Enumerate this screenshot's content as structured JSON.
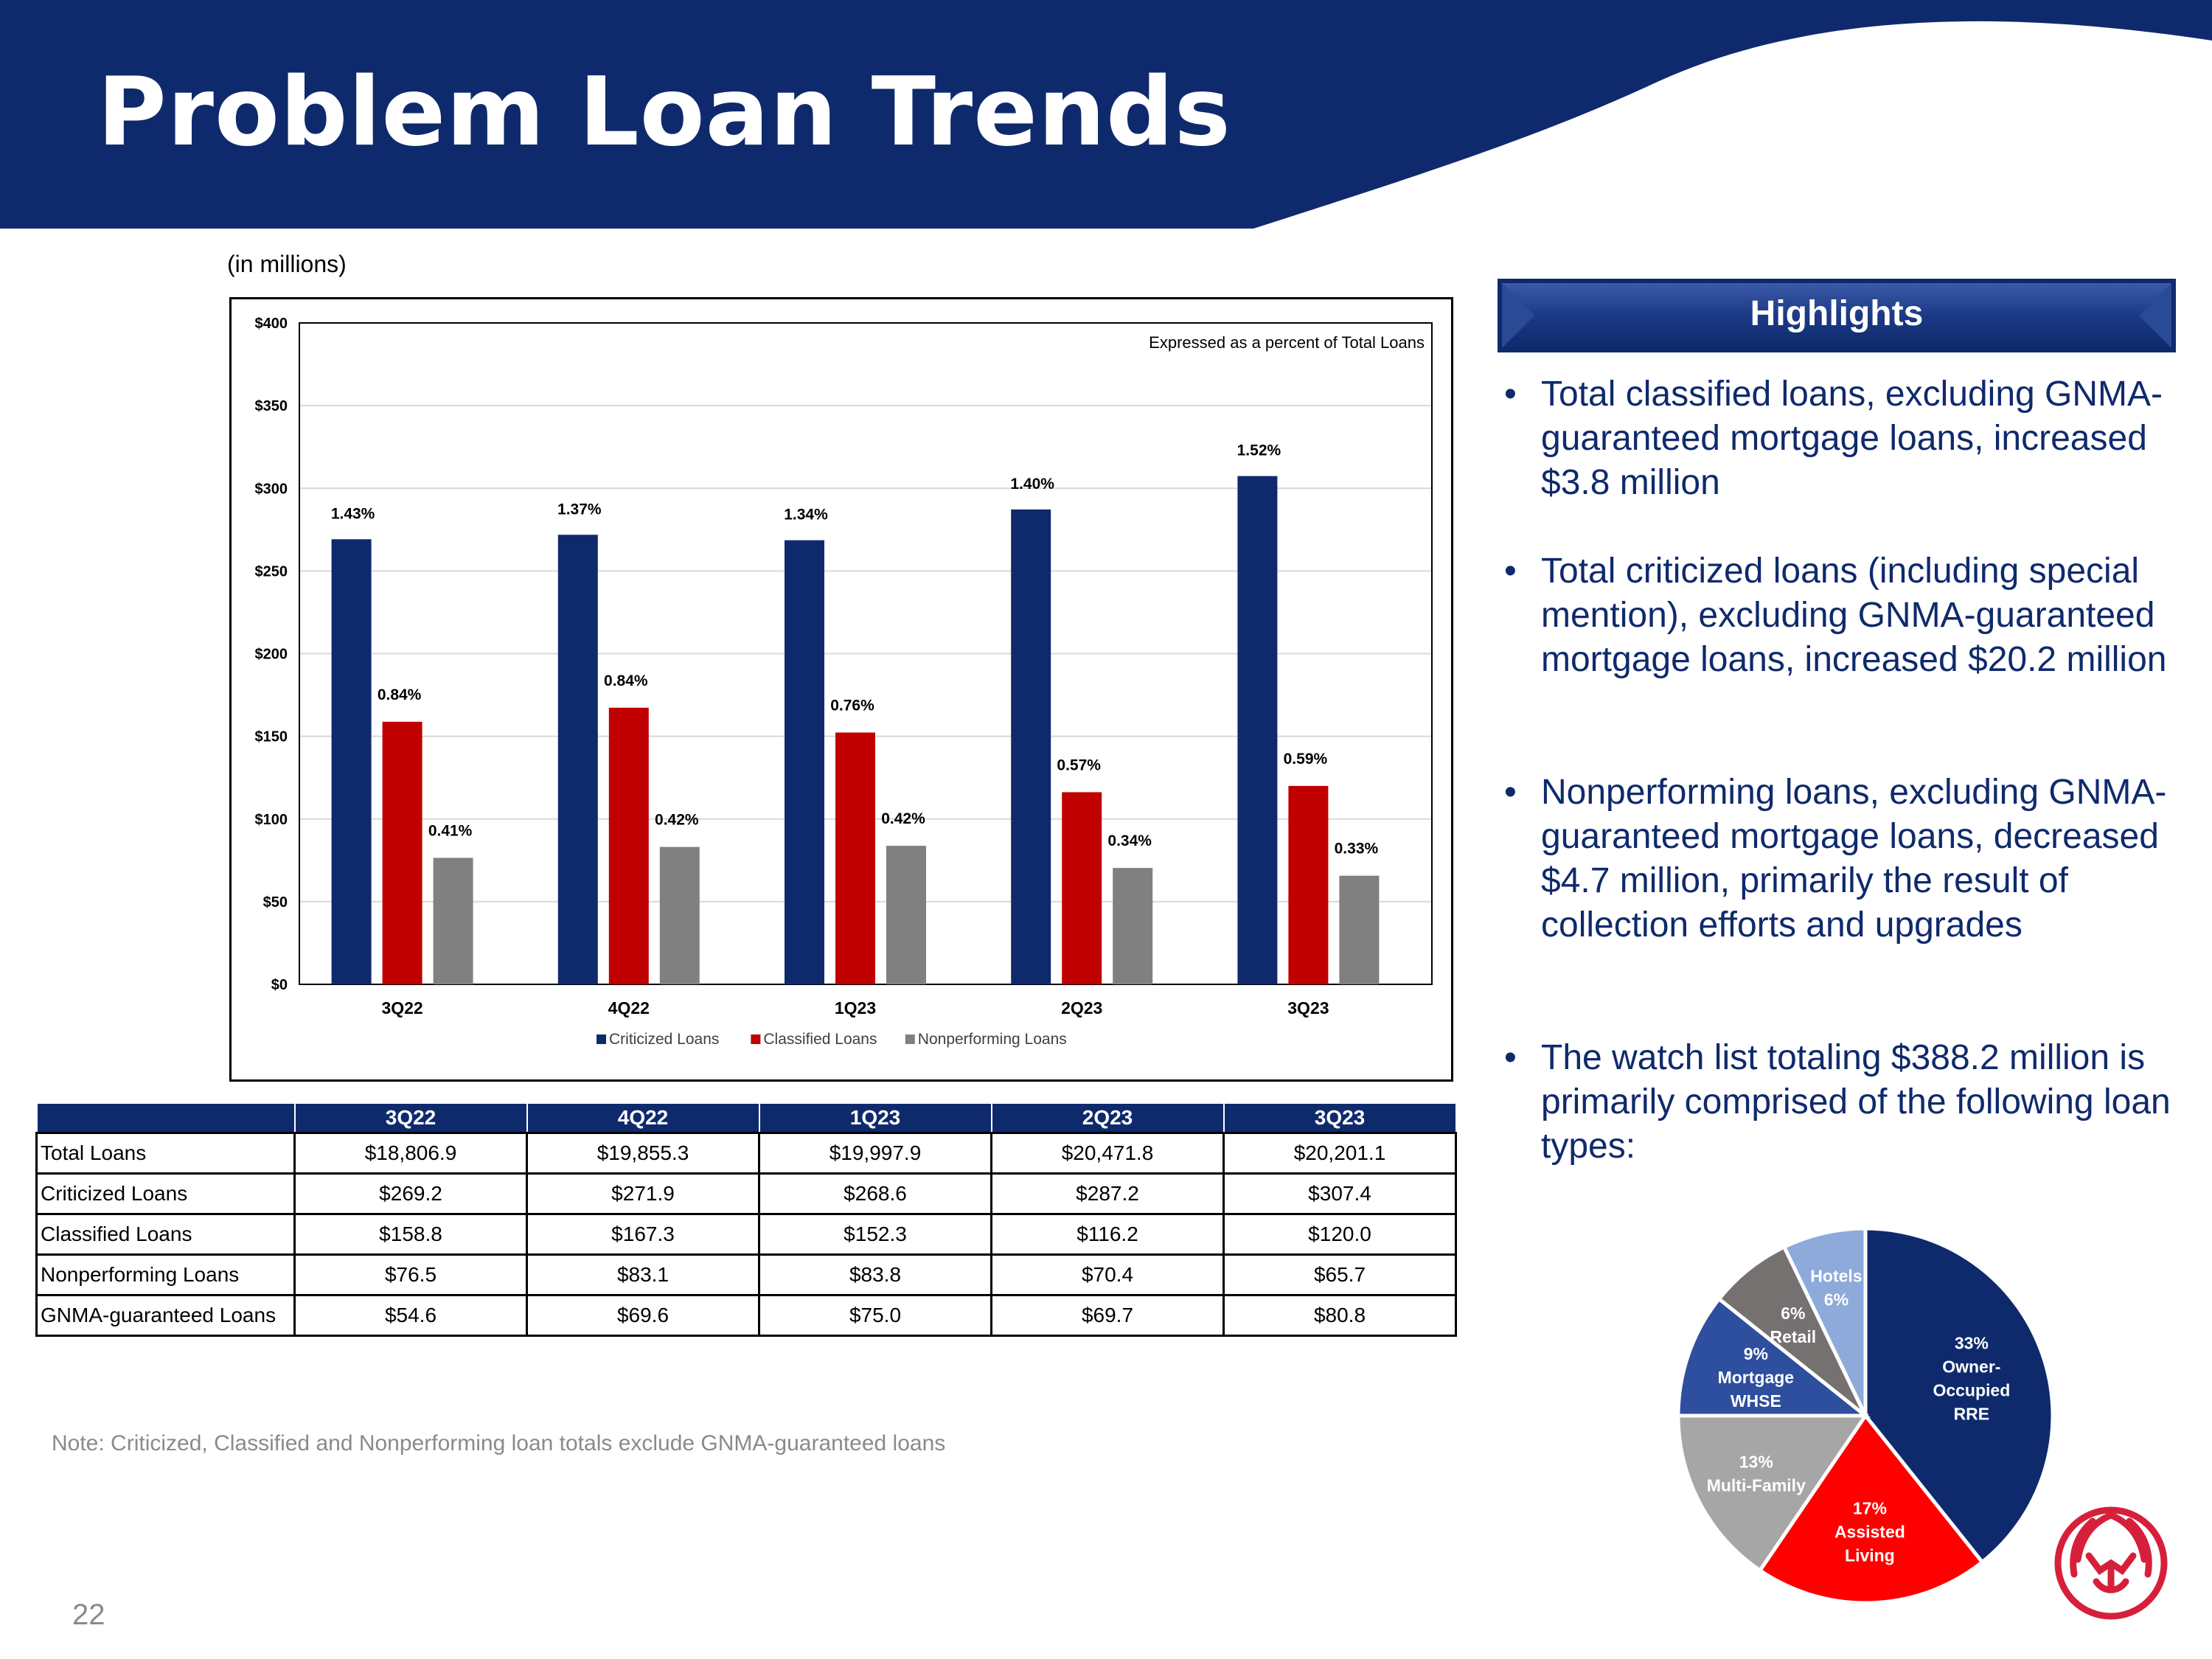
{
  "title": "Problem Loan Trends",
  "units_note": "(in millions)",
  "chart_data": [
    {
      "type": "bar",
      "categories": [
        "3Q22",
        "4Q22",
        "1Q23",
        "2Q23",
        "3Q23"
      ],
      "series": [
        {
          "name": "Criticized Loans",
          "color": "#0f2a6c",
          "values": [
            269.2,
            271.9,
            268.6,
            287.2,
            307.4
          ],
          "labels": [
            "1.43%",
            "1.37%",
            "1.34%",
            "1.40%",
            "1.52%"
          ]
        },
        {
          "name": "Classified Loans",
          "color": "#c00000",
          "values": [
            158.8,
            167.3,
            152.3,
            116.2,
            120.0
          ],
          "labels": [
            "0.84%",
            "0.84%",
            "0.76%",
            "0.57%",
            "0.59%"
          ]
        },
        {
          "name": "Nonperforming Loans",
          "color": "#808080",
          "values": [
            76.5,
            83.1,
            83.8,
            70.4,
            65.7
          ],
          "labels": [
            "0.41%",
            "0.42%",
            "0.42%",
            "0.34%",
            "0.33%"
          ]
        }
      ],
      "ylim": [
        0,
        400
      ],
      "yticks": [
        "$0",
        "$50",
        "$100",
        "$150",
        "$200",
        "$250",
        "$300",
        "$350",
        "$400"
      ],
      "annotation": "Expressed as a percent of Total Loans",
      "grid": true,
      "legend": "bottom"
    },
    {
      "type": "pie",
      "slices": [
        {
          "label": "33% Owner-Occupied RRE",
          "lines": [
            "33%",
            "Owner-",
            "Occupied",
            "RRE"
          ],
          "value": 33,
          "color": "#0f2a6c"
        },
        {
          "label": "17% Assisted Living",
          "lines": [
            "17%",
            "Assisted",
            "Living"
          ],
          "value": 17,
          "color": "#ff0000"
        },
        {
          "label": "13% Multi-Family",
          "lines": [
            "13%",
            "Multi-Family"
          ],
          "value": 13,
          "color": "#a6a6a6"
        },
        {
          "label": "9% Mortgage WHSE",
          "lines": [
            "9%",
            "Mortgage",
            "WHSE"
          ],
          "value": 9,
          "color": "#2e4e9e"
        },
        {
          "label": "6% Retail",
          "lines": [
            "6%",
            "Retail"
          ],
          "value": 6,
          "color": "#767171"
        },
        {
          "label": "Hotels 6%",
          "lines": [
            "Hotels",
            "6%"
          ],
          "value": 6,
          "color": "#8eaadb"
        }
      ]
    }
  ],
  "table": {
    "columns": [
      "3Q22",
      "4Q22",
      "1Q23",
      "2Q23",
      "3Q23"
    ],
    "rows": [
      {
        "label": "Total Loans",
        "values": [
          "$18,806.9",
          "$19,855.3",
          "$19,997.9",
          "$20,471.8",
          "$20,201.1"
        ]
      },
      {
        "label": "Criticized Loans",
        "values": [
          "$269.2",
          "$271.9",
          "$268.6",
          "$287.2",
          "$307.4"
        ]
      },
      {
        "label": "Classified Loans",
        "values": [
          "$158.8",
          "$167.3",
          "$152.3",
          "$116.2",
          "$120.0"
        ]
      },
      {
        "label": "Nonperforming Loans",
        "values": [
          "$76.5",
          "$83.1",
          "$83.8",
          "$70.4",
          "$65.7"
        ]
      },
      {
        "label": "GNMA-guaranteed Loans",
        "values": [
          "$54.6",
          "$69.6",
          "$75.0",
          "$69.7",
          "$80.8"
        ]
      }
    ]
  },
  "footnote": "Note: Criticized, Classified and Nonperforming loan totals exclude GNMA-guaranteed loans",
  "page_number": "22",
  "highlights": {
    "title": "Highlights",
    "bullet_symbol": "•",
    "bullets": [
      "Total classified loans, excluding GNMA-guaranteed mortgage loans, increased $3.8 million",
      "Total criticized loans (including special mention), excluding GNMA-guaranteed mortgage loans, increased $20.2 million",
      "Nonperforming loans, excluding GNMA-guaranteed mortgage loans, decreased $4.7 million, primarily the result of collection efforts and upgrades",
      "The watch list totaling $388.2 million is primarily comprised of the following loan types:"
    ]
  },
  "colors": {
    "brand_navy": "#0f2a6c",
    "logo_red": "#d6203b"
  },
  "logo_icon": "lion-head-icon"
}
